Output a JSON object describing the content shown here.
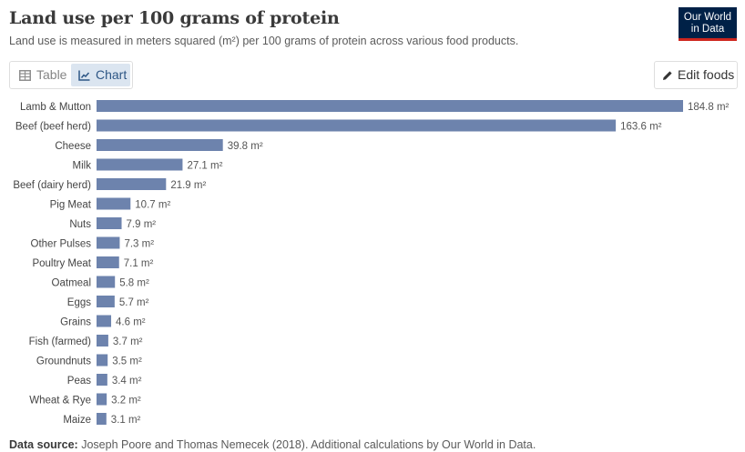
{
  "header": {
    "title": "Land use per 100 grams of protein",
    "subtitle": "Land use is measured in meters squared (m²) per 100 grams of protein across various food products.",
    "logo_line1": "Our World",
    "logo_line2": "in Data"
  },
  "tabs": {
    "table_label": "Table",
    "chart_label": "Chart",
    "active": "Chart"
  },
  "edit_button": {
    "label": "Edit foods"
  },
  "colors": {
    "bar": "#6d83ad",
    "logo_bg": "#002147",
    "logo_stripe": "#ce261e",
    "active_tab_bg": "#dbe5f0"
  },
  "chart_data": {
    "type": "bar",
    "orientation": "horizontal",
    "unit": "m²",
    "categories": [
      "Lamb & Mutton",
      "Beef (beef herd)",
      "Cheese",
      "Milk",
      "Beef (dairy herd)",
      "Pig Meat",
      "Nuts",
      "Other Pulses",
      "Poultry Meat",
      "Oatmeal",
      "Eggs",
      "Grains",
      "Fish (farmed)",
      "Groundnuts",
      "Peas",
      "Wheat & Rye",
      "Maize"
    ],
    "values": [
      184.8,
      163.6,
      39.8,
      27.1,
      21.9,
      10.7,
      7.9,
      7.3,
      7.1,
      5.8,
      5.7,
      4.6,
      3.7,
      3.5,
      3.4,
      3.2,
      3.1
    ],
    "value_labels": [
      "184.8 m²",
      "163.6 m²",
      "39.8 m²",
      "27.1 m²",
      "21.9 m²",
      "10.7 m²",
      "7.9 m²",
      "7.3 m²",
      "7.1 m²",
      "5.8 m²",
      "5.7 m²",
      "4.6 m²",
      "3.7 m²",
      "3.5 m²",
      "3.4 m²",
      "3.2 m²",
      "3.1 m²"
    ],
    "xlim": [
      0,
      184.8
    ],
    "grid": false,
    "legend": "none"
  },
  "footer": {
    "source_label": "Data source:",
    "source_text": "Joseph Poore and Thomas Nemecek (2018). Additional calculations by Our World in Data."
  }
}
